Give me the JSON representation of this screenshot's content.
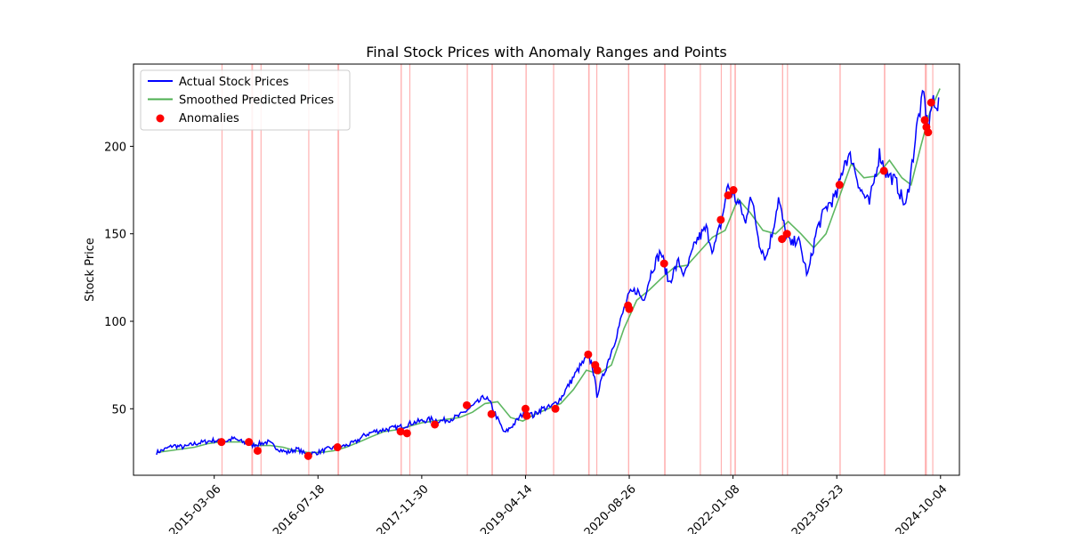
{
  "chart_data": {
    "type": "line",
    "title": "Final Stock Prices with Anomaly Ranges and Points",
    "xlabel": "",
    "ylabel": "Stock Price",
    "xlim": [
      "2014-02-10",
      "2025-01-03"
    ],
    "ylim": [
      12,
      247
    ],
    "x_ticks": [
      "2015-03-06",
      "2016-07-18",
      "2017-11-30",
      "2019-04-14",
      "2020-08-26",
      "2022-01-08",
      "2023-05-23",
      "2024-10-04"
    ],
    "y_ticks": [
      50,
      100,
      150,
      200
    ],
    "legend_position": "upper-left",
    "legend": [
      {
        "label": "Actual Stock Prices",
        "kind": "line",
        "color": "#0000ff"
      },
      {
        "label": "Smoothed Predicted Prices",
        "kind": "line",
        "color": "#4caf50"
      },
      {
        "label": "Anomalies",
        "kind": "marker",
        "color": "#ff0000"
      }
    ],
    "series": [
      {
        "name": "Actual Stock Prices",
        "color": "#0000ff",
        "points": [
          [
            "2014-06-01",
            25
          ],
          [
            "2014-07-15",
            27
          ],
          [
            "2014-08-20",
            29
          ],
          [
            "2014-10-10",
            28
          ],
          [
            "2014-12-01",
            30
          ],
          [
            "2015-01-15",
            31
          ],
          [
            "2015-03-06",
            32
          ],
          [
            "2015-04-20",
            31
          ],
          [
            "2015-06-05",
            33
          ],
          [
            "2015-07-20",
            31
          ],
          [
            "2015-09-01",
            29
          ],
          [
            "2015-10-10",
            30
          ],
          [
            "2015-11-20",
            31
          ],
          [
            "2016-01-10",
            27
          ],
          [
            "2016-02-20",
            25
          ],
          [
            "2016-04-10",
            27
          ],
          [
            "2016-05-20",
            24
          ],
          [
            "2016-07-18",
            25
          ],
          [
            "2016-09-01",
            27
          ],
          [
            "2016-10-15",
            28
          ],
          [
            "2016-12-01",
            29
          ],
          [
            "2017-01-15",
            31
          ],
          [
            "2017-03-01",
            35
          ],
          [
            "2017-04-15",
            37
          ],
          [
            "2017-06-01",
            38
          ],
          [
            "2017-07-20",
            39
          ],
          [
            "2017-09-01",
            40
          ],
          [
            "2017-10-15",
            42
          ],
          [
            "2017-11-30",
            43
          ],
          [
            "2018-01-15",
            44
          ],
          [
            "2018-03-01",
            43
          ],
          [
            "2018-04-15",
            44
          ],
          [
            "2018-06-01",
            46
          ],
          [
            "2018-07-15",
            50
          ],
          [
            "2018-09-01",
            54
          ],
          [
            "2018-10-01",
            57
          ],
          [
            "2018-11-01",
            52
          ],
          [
            "2018-12-01",
            44
          ],
          [
            "2019-01-03",
            36
          ],
          [
            "2019-02-15",
            41
          ],
          [
            "2019-04-14",
            49
          ],
          [
            "2019-05-20",
            46
          ],
          [
            "2019-07-01",
            50
          ],
          [
            "2019-08-15",
            51
          ],
          [
            "2019-10-01",
            56
          ],
          [
            "2019-11-15",
            65
          ],
          [
            "2020-01-01",
            74
          ],
          [
            "2020-02-10",
            80
          ],
          [
            "2020-03-01",
            75
          ],
          [
            "2020-03-23",
            58
          ],
          [
            "2020-05-01",
            72
          ],
          [
            "2020-06-15",
            88
          ],
          [
            "2020-08-01",
            107
          ],
          [
            "2020-08-26",
            115
          ],
          [
            "2020-10-01",
            118
          ],
          [
            "2020-11-01",
            112
          ],
          [
            "2020-12-15",
            130
          ],
          [
            "2021-01-25",
            140
          ],
          [
            "2021-03-05",
            122
          ],
          [
            "2021-04-20",
            134
          ],
          [
            "2021-05-20",
            126
          ],
          [
            "2021-07-15",
            146
          ],
          [
            "2021-09-01",
            153
          ],
          [
            "2021-10-05",
            140
          ],
          [
            "2021-11-15",
            158
          ],
          [
            "2021-12-15",
            178
          ],
          [
            "2022-01-08",
            172
          ],
          [
            "2022-02-15",
            165
          ],
          [
            "2022-03-10",
            155
          ],
          [
            "2022-04-01",
            174
          ],
          [
            "2022-05-15",
            145
          ],
          [
            "2022-06-15",
            136
          ],
          [
            "2022-07-15",
            150
          ],
          [
            "2022-08-15",
            170
          ],
          [
            "2022-09-15",
            152
          ],
          [
            "2022-10-15",
            143
          ],
          [
            "2022-11-15",
            148
          ],
          [
            "2023-01-03",
            126
          ],
          [
            "2023-02-15",
            152
          ],
          [
            "2023-04-01",
            165
          ],
          [
            "2023-05-23",
            172
          ],
          [
            "2023-06-30",
            192
          ],
          [
            "2023-08-01",
            194
          ],
          [
            "2023-09-15",
            175
          ],
          [
            "2023-10-27",
            167
          ],
          [
            "2023-12-15",
            196
          ],
          [
            "2024-01-15",
            185
          ],
          [
            "2024-03-01",
            180
          ],
          [
            "2024-04-19",
            165
          ],
          [
            "2024-05-20",
            190
          ],
          [
            "2024-06-15",
            214
          ],
          [
            "2024-07-15",
            230
          ],
          [
            "2024-08-05",
            209
          ],
          [
            "2024-08-25",
            226
          ],
          [
            "2024-09-15",
            220
          ],
          [
            "2024-09-25",
            228
          ]
        ]
      },
      {
        "name": "Smoothed Predicted Prices",
        "color": "#4caf50",
        "points": [
          [
            "2014-06-01",
            25
          ],
          [
            "2014-08-01",
            26
          ],
          [
            "2014-10-01",
            27
          ],
          [
            "2014-12-01",
            28
          ],
          [
            "2015-02-01",
            30
          ],
          [
            "2015-04-01",
            31
          ],
          [
            "2015-06-01",
            31
          ],
          [
            "2015-08-01",
            31
          ],
          [
            "2015-10-01",
            29
          ],
          [
            "2015-12-01",
            29
          ],
          [
            "2016-02-01",
            28
          ],
          [
            "2016-04-01",
            26
          ],
          [
            "2016-06-01",
            25
          ],
          [
            "2016-08-01",
            25
          ],
          [
            "2016-10-01",
            26
          ],
          [
            "2016-12-01",
            28
          ],
          [
            "2017-02-01",
            31
          ],
          [
            "2017-04-01",
            34
          ],
          [
            "2017-06-01",
            37
          ],
          [
            "2017-08-01",
            38
          ],
          [
            "2017-10-01",
            40
          ],
          [
            "2017-12-01",
            42
          ],
          [
            "2018-02-01",
            43
          ],
          [
            "2018-04-01",
            44
          ],
          [
            "2018-06-01",
            45
          ],
          [
            "2018-08-01",
            48
          ],
          [
            "2018-10-01",
            53
          ],
          [
            "2018-12-01",
            54
          ],
          [
            "2019-02-01",
            45
          ],
          [
            "2019-04-01",
            43
          ],
          [
            "2019-06-01",
            47
          ],
          [
            "2019-08-01",
            50
          ],
          [
            "2019-10-01",
            53
          ],
          [
            "2019-12-01",
            61
          ],
          [
            "2020-02-01",
            72
          ],
          [
            "2020-04-01",
            70
          ],
          [
            "2020-06-01",
            75
          ],
          [
            "2020-08-01",
            96
          ],
          [
            "2020-10-01",
            112
          ],
          [
            "2020-12-01",
            118
          ],
          [
            "2021-02-01",
            125
          ],
          [
            "2021-04-01",
            131
          ],
          [
            "2021-06-01",
            132
          ],
          [
            "2021-08-01",
            140
          ],
          [
            "2021-10-01",
            148
          ],
          [
            "2021-12-01",
            152
          ],
          [
            "2022-02-01",
            170
          ],
          [
            "2022-04-01",
            162
          ],
          [
            "2022-06-01",
            152
          ],
          [
            "2022-08-01",
            150
          ],
          [
            "2022-10-01",
            157
          ],
          [
            "2022-12-01",
            150
          ],
          [
            "2023-02-01",
            142
          ],
          [
            "2023-04-01",
            150
          ],
          [
            "2023-06-01",
            170
          ],
          [
            "2023-08-01",
            190
          ],
          [
            "2023-10-01",
            182
          ],
          [
            "2023-12-01",
            183
          ],
          [
            "2024-02-01",
            192
          ],
          [
            "2024-04-01",
            182
          ],
          [
            "2024-05-15",
            178
          ],
          [
            "2024-07-01",
            200
          ],
          [
            "2024-08-15",
            220
          ],
          [
            "2024-10-01",
            233
          ]
        ]
      },
      {
        "name": "Anomalies",
        "color": "#ff0000",
        "kind": "scatter",
        "points": [
          [
            "2015-04-10",
            31
          ],
          [
            "2015-08-20",
            31
          ],
          [
            "2015-10-01",
            26
          ],
          [
            "2016-06-01",
            23
          ],
          [
            "2016-10-20",
            28
          ],
          [
            "2017-08-20",
            37
          ],
          [
            "2017-09-20",
            36
          ],
          [
            "2018-02-01",
            41
          ],
          [
            "2018-07-05",
            52
          ],
          [
            "2018-11-01",
            47
          ],
          [
            "2019-04-14",
            50
          ],
          [
            "2019-04-20",
            46
          ],
          [
            "2019-09-05",
            50
          ],
          [
            "2020-02-10",
            81
          ],
          [
            "2020-03-15",
            75
          ],
          [
            "2020-03-25",
            72
          ],
          [
            "2020-08-20",
            109
          ],
          [
            "2020-08-26",
            107
          ],
          [
            "2021-02-10",
            133
          ],
          [
            "2021-11-10",
            158
          ],
          [
            "2021-12-15",
            172
          ],
          [
            "2022-01-10",
            175
          ],
          [
            "2022-09-01",
            147
          ],
          [
            "2022-09-25",
            150
          ],
          [
            "2023-06-05",
            178
          ],
          [
            "2024-01-05",
            186
          ],
          [
            "2024-07-20",
            215
          ],
          [
            "2024-07-28",
            211
          ],
          [
            "2024-08-05",
            208
          ],
          [
            "2024-08-20",
            225
          ]
        ]
      }
    ],
    "anomaly_ranges": [
      [
        "2015-04-10",
        "2015-04-12"
      ],
      [
        "2015-09-01",
        "2015-09-09"
      ],
      [
        "2015-10-15",
        "2015-10-18"
      ],
      [
        "2016-06-01",
        "2016-06-03"
      ],
      [
        "2016-10-20",
        "2016-10-28"
      ],
      [
        "2017-08-20",
        "2017-08-26"
      ],
      [
        "2017-10-01",
        "2017-10-04"
      ],
      [
        "2018-07-05",
        "2018-07-07"
      ],
      [
        "2018-11-01",
        "2018-11-08"
      ],
      [
        "2019-04-14",
        "2019-04-20"
      ],
      [
        "2019-08-25",
        "2019-08-28"
      ],
      [
        "2020-02-10",
        "2020-02-17"
      ],
      [
        "2020-03-20",
        "2020-03-23"
      ],
      [
        "2020-08-20",
        "2020-08-26"
      ],
      [
        "2021-02-10",
        "2021-02-17"
      ],
      [
        "2021-08-01",
        "2021-08-04"
      ],
      [
        "2021-11-10",
        "2021-11-13"
      ],
      [
        "2021-12-25",
        "2021-12-31"
      ],
      [
        "2022-01-15",
        "2022-01-22"
      ],
      [
        "2022-09-01",
        "2022-09-07"
      ],
      [
        "2022-09-25",
        "2022-09-28"
      ],
      [
        "2023-06-05",
        "2023-06-11"
      ],
      [
        "2024-01-05",
        "2024-01-12"
      ],
      [
        "2024-07-20",
        "2024-07-30"
      ],
      [
        "2024-08-25",
        "2024-08-28"
      ]
    ]
  }
}
